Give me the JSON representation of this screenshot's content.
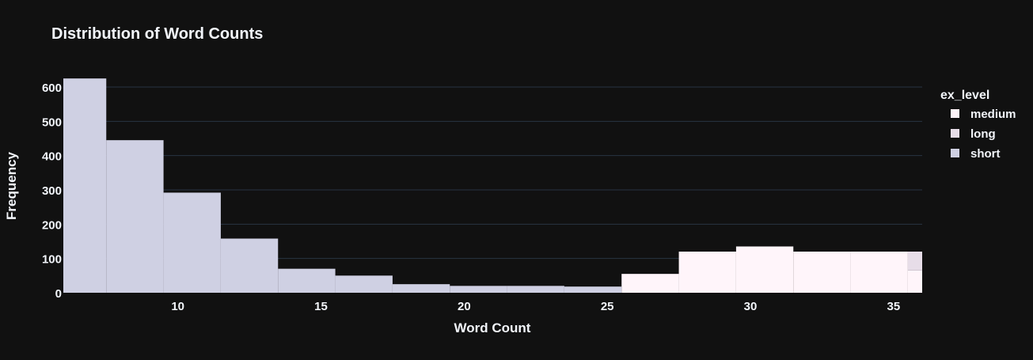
{
  "chart_data": {
    "type": "bar",
    "title": "Distribution of Word Counts",
    "xlabel": "Word Count",
    "ylabel": "Frequency",
    "legend_title": "ex_level",
    "legend_position": "right",
    "grid": true,
    "xlim": [
      6,
      36
    ],
    "ylim": [
      0,
      660
    ],
    "x_ticks": [
      10,
      15,
      20,
      25,
      30,
      35
    ],
    "y_ticks": [
      0,
      100,
      200,
      300,
      400,
      500,
      600
    ],
    "background": "#111111",
    "series": [
      {
        "name": "medium",
        "color": "#fff5fa",
        "bins": [
          {
            "x0": 5.5,
            "x1": 7.5,
            "y": 0
          },
          {
            "x0": 7.5,
            "x1": 9.5,
            "y": 0
          },
          {
            "x0": 9.5,
            "x1": 11.5,
            "y": 0
          },
          {
            "x0": 11.5,
            "x1": 13.5,
            "y": 0
          },
          {
            "x0": 13.5,
            "x1": 15.5,
            "y": 0
          },
          {
            "x0": 15.5,
            "x1": 17.5,
            "y": 0
          },
          {
            "x0": 17.5,
            "x1": 19.5,
            "y": 0
          },
          {
            "x0": 19.5,
            "x1": 21.5,
            "y": 0
          },
          {
            "x0": 21.5,
            "x1": 23.5,
            "y": 0
          },
          {
            "x0": 23.5,
            "x1": 25.5,
            "y": 0
          },
          {
            "x0": 25.5,
            "x1": 27.5,
            "y": 55
          },
          {
            "x0": 27.5,
            "x1": 29.5,
            "y": 120
          },
          {
            "x0": 29.5,
            "x1": 31.5,
            "y": 135
          },
          {
            "x0": 31.5,
            "x1": 33.5,
            "y": 120
          },
          {
            "x0": 33.5,
            "x1": 35.5,
            "y": 120
          },
          {
            "x0": 35.5,
            "x1": 37.5,
            "y": 65
          }
        ]
      },
      {
        "name": "long",
        "color": "#e7dde8",
        "bins": [
          {
            "x0": 35.5,
            "x1": 37.5,
            "y": 55
          }
        ]
      },
      {
        "name": "short",
        "color": "#cfd0e3",
        "bins": [
          {
            "x0": 5.5,
            "x1": 7.5,
            "y": 625
          },
          {
            "x0": 7.5,
            "x1": 9.5,
            "y": 445
          },
          {
            "x0": 9.5,
            "x1": 11.5,
            "y": 292
          },
          {
            "x0": 11.5,
            "x1": 13.5,
            "y": 158
          },
          {
            "x0": 13.5,
            "x1": 15.5,
            "y": 70
          },
          {
            "x0": 15.5,
            "x1": 17.5,
            "y": 50
          },
          {
            "x0": 17.5,
            "x1": 19.5,
            "y": 25
          },
          {
            "x0": 19.5,
            "x1": 21.5,
            "y": 20
          },
          {
            "x0": 21.5,
            "x1": 23.5,
            "y": 20
          },
          {
            "x0": 23.5,
            "x1": 25.5,
            "y": 18
          }
        ]
      }
    ]
  }
}
